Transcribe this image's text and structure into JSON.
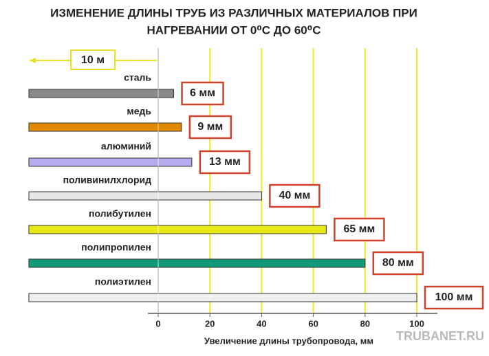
{
  "chart_data": {
    "type": "bar",
    "orientation": "horizontal",
    "title": [
      "ИЗМЕНЕНИЕ ДЛИНЫ ТРУБ ИЗ РАЗЛИЧНЫХ МАТЕРИАЛОВ ПРИ",
      "НАГРЕВАНИИ ОТ 0⁰С ДО 60⁰С"
    ],
    "annotation": "10 м",
    "x_label": "Увеличение длины трубопровода, мм",
    "watermark": "TRUBANET.RU",
    "categories": [
      "сталь",
      "медь",
      "алюминий",
      "поливинилхлорид",
      "полибутилен",
      "полипропилен",
      "полиэтилен"
    ],
    "values": [
      6,
      9,
      13,
      40,
      65,
      80,
      100
    ],
    "value_labels": [
      "6 мм",
      "9 мм",
      "13 мм",
      "40 мм",
      "65 мм",
      "80 мм",
      "100 мм"
    ],
    "colors": [
      "#8a8a8a",
      "#e08a00",
      "#b4acec",
      "#e6e6e6",
      "#e8e812",
      "#129a78",
      "#efefef"
    ],
    "xlim": [
      0,
      100
    ],
    "xticks": [
      0,
      20,
      40,
      60,
      80,
      100
    ],
    "grid": true,
    "grid_color": "#f0ea20"
  }
}
